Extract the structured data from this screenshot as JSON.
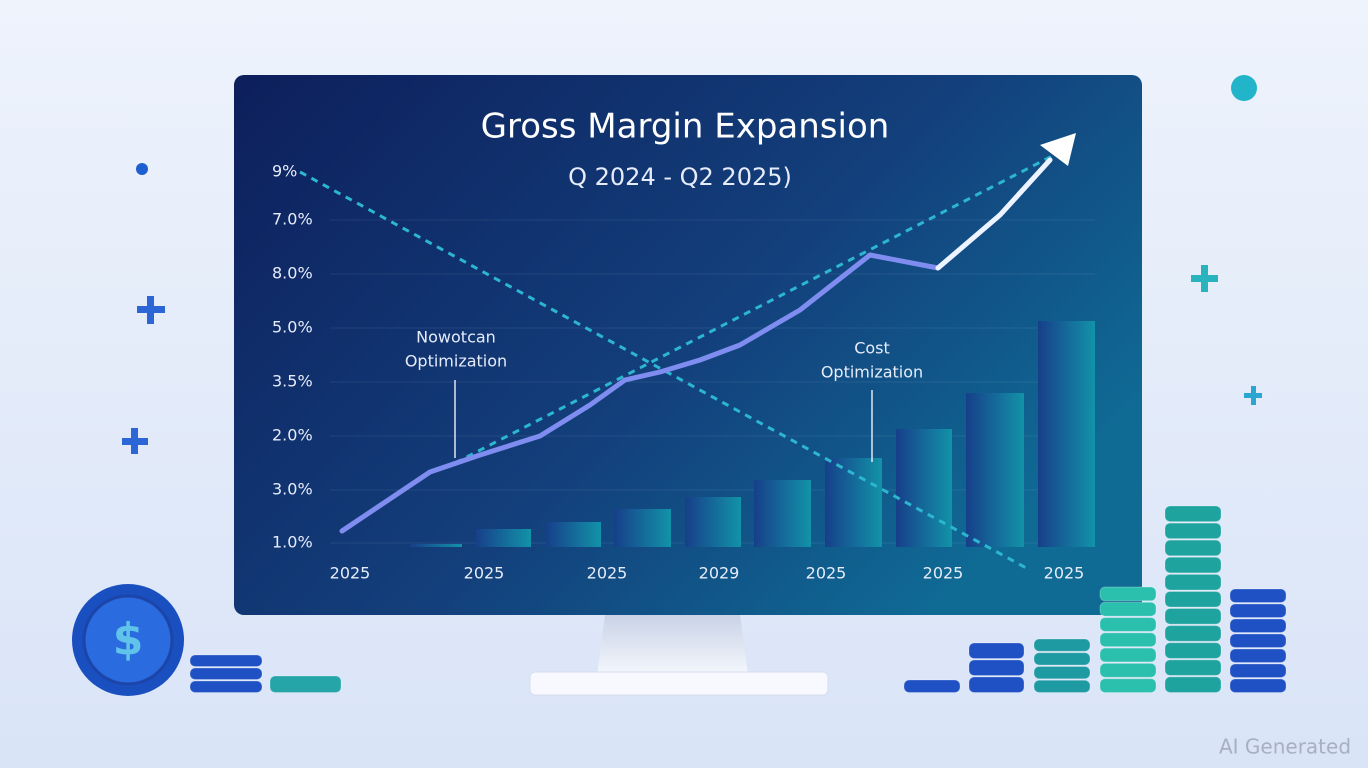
{
  "screen": {
    "title": "Gross Margin Expansion",
    "subtitle": "Q 2024 - Q2 2025)",
    "y_labels": [
      "9%",
      "7.0%",
      "8.0%",
      "5.0%",
      "3.5%",
      "2.0%",
      "3.0%",
      "1.0%"
    ],
    "x_labels": [
      "2025",
      "2025",
      "2025",
      "2029",
      "2025",
      "2025",
      "2025"
    ],
    "annotations": [
      {
        "lines": [
          "Nowotcan",
          "Optimization"
        ]
      },
      {
        "lines": [
          "Cost",
          "Optimization"
        ]
      }
    ]
  },
  "coin_symbol": "$",
  "watermark": "AI Generated"
}
